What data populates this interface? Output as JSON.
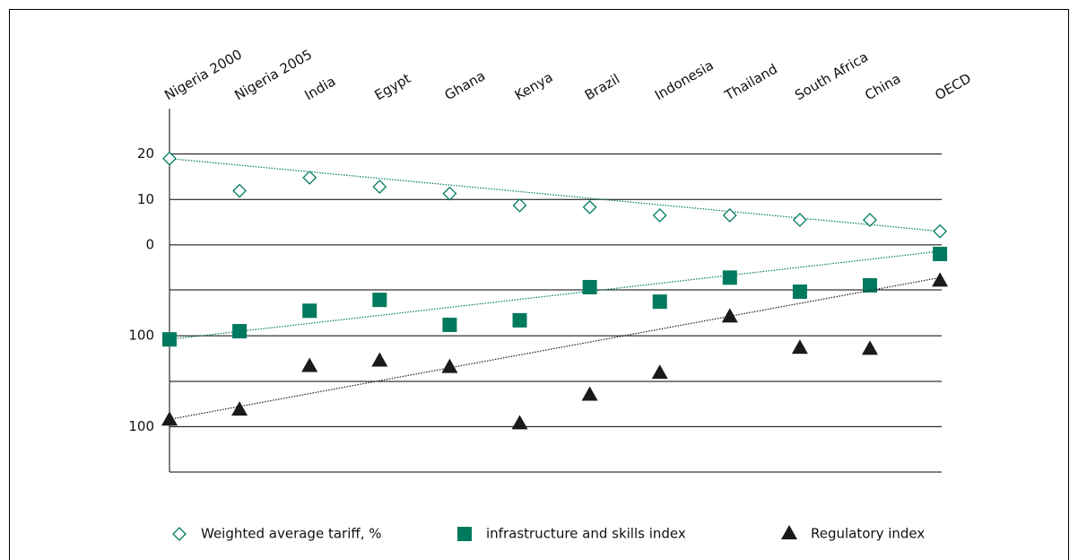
{
  "chart_data": {
    "type": "scatter",
    "categories": [
      "Nigeria 2000",
      "Nigeria 2005",
      "India",
      "Egypt",
      "Ghana",
      "Kenya",
      "Brazil",
      "Indonesia",
      "Thailand",
      "South Africa",
      "China",
      "OECD"
    ],
    "ylim": [
      -50,
      30
    ],
    "yticks": [
      0,
      10,
      20
    ],
    "y2lim": [
      70,
      150
    ],
    "y2ticks": [
      100
    ],
    "y3lim": [
      90,
      170
    ],
    "y3ticks": [
      100
    ],
    "grid": true,
    "series": [
      {
        "name": "Weighted average tariff, %",
        "color": "#007a5e",
        "marker": "diamond-open",
        "axis": "y",
        "values": [
          19,
          11.9,
          14.8,
          12.8,
          11.3,
          8.7,
          8.3,
          6.5,
          6.5,
          5.5,
          5.5,
          3
        ],
        "trend": [
          19,
          3
        ]
      },
      {
        "name": "infrastructure and skills index",
        "color": "#007a5e",
        "marker": "square",
        "axis": "y2",
        "values": [
          99.2,
          101,
          105.5,
          107.9,
          102.4,
          103.4,
          110.7,
          107.5,
          112.8,
          109.7,
          111.1,
          118
        ],
        "trend": [
          99.2,
          118.6
        ]
      },
      {
        "name": "Regulatory index",
        "color": "#1a1a1a",
        "marker": "triangle",
        "axis": "y3",
        "values": [
          101.4,
          103.6,
          113.2,
          114.4,
          113,
          100.6,
          106.9,
          111.7,
          124.1,
          117.2,
          117,
          132
        ],
        "trend": [
          101.6,
          132.8
        ]
      }
    ]
  }
}
